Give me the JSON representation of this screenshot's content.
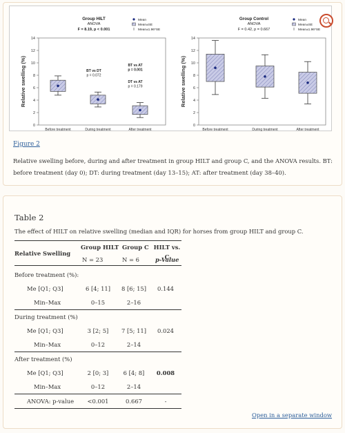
{
  "figure": {
    "link_text": "Figure 2",
    "caption": "Relative swelling before, during and after treatment in group HILT and group C, and the ANOVA results. BT: before treatment (day 0); DT: during treatment (day 13–15); AT: after treatment (day 38–40).",
    "zoom_icon": "zoom-in-icon"
  },
  "chart_data": [
    {
      "type": "boxplot",
      "title": "Group HILT",
      "subtitle_1": "ANOVA",
      "subtitle_2": "F = 8.19, p < 0.001",
      "ylabel": "Relative swelling (%)",
      "ylim": [
        0,
        14
      ],
      "yticks": [
        0,
        2,
        4,
        6,
        8,
        10,
        12,
        14
      ],
      "categories": [
        "Before treatment",
        "During treatment",
        "After treatment"
      ],
      "mean": [
        6.3,
        4.1,
        2.4
      ],
      "box_low": [
        5.4,
        3.4,
        1.7
      ],
      "box_high": [
        7.2,
        4.8,
        3.1
      ],
      "whisker_low": [
        4.8,
        2.9,
        1.2
      ],
      "whisker_high": [
        7.9,
        5.3,
        3.6
      ],
      "legend": [
        "Mean",
        "Mean±SE",
        "Mean±1.96*SE"
      ],
      "annotations": [
        {
          "label": "BT vs DT",
          "value": "p = 0.072"
        },
        {
          "label": "BT vs AT",
          "value": "p = 0.001"
        },
        {
          "label": "DT vs AT",
          "value": "p = 0.179"
        }
      ]
    },
    {
      "type": "boxplot",
      "title": "Group Control",
      "subtitle_1": "ANOVA",
      "subtitle_2": "F = 0.42, p = 0.667",
      "ylabel": "Relative swelling (%)",
      "ylim": [
        0,
        14
      ],
      "yticks": [
        0,
        2,
        4,
        6,
        8,
        10,
        12,
        14
      ],
      "categories": [
        "Before treatment",
        "During treatment",
        "After treatment"
      ],
      "mean": [
        9.2,
        7.8,
        6.8
      ],
      "box_low": [
        7.0,
        6.1,
        5.1
      ],
      "box_high": [
        11.4,
        9.5,
        8.5
      ],
      "whisker_low": [
        4.9,
        4.3,
        3.4
      ],
      "whisker_high": [
        13.6,
        11.3,
        10.2
      ],
      "legend": [
        "Mean",
        "Mean±SE",
        "Mean±1.96*SE"
      ],
      "annotations": []
    }
  ],
  "table": {
    "title": "Table 2",
    "description": "The effect of HILT on relative swelling (median and IQR) for horses from group HILT and group C.",
    "header": {
      "col0": "Relative Swelling",
      "col1_a": "Group HILT",
      "col1_b": "N = 23",
      "col2_a": "Group C",
      "col2_b": "N = 6",
      "col3_a": "HILT vs. C",
      "col3_b": "p-Value"
    },
    "sections": [
      {
        "label": "Before treatment (%):",
        "me_label": "Me [Q1; Q3]",
        "me_hilt": "6 [4; 11]",
        "me_c": "8 [6; 15]",
        "p": "0.144",
        "mm_label": "Min–Max",
        "mm_hilt": "0–15",
        "mm_c": "2–16"
      },
      {
        "label": "During treatment (%)",
        "me_label": "Me [Q1; Q3]",
        "me_hilt": "3 [2; 5]",
        "me_c": "7 [5; 11]",
        "p": "0.024",
        "mm_label": "Min–Max",
        "mm_hilt": "0–12",
        "mm_c": "2–14"
      },
      {
        "label": "After treatment (%)",
        "me_label": "Me [Q1; Q3]",
        "me_hilt": "2 [0; 3]",
        "me_c": "6 [4; 8]",
        "p": "0.008",
        "mm_label": "Min–Max",
        "mm_hilt": "0–12",
        "mm_c": "2–14"
      }
    ],
    "anova": {
      "label": "ANOVA: p-value",
      "hilt": "<0.001",
      "c": "0.667",
      "p": "-"
    },
    "separate_window_link": "Open in a separate window"
  }
}
